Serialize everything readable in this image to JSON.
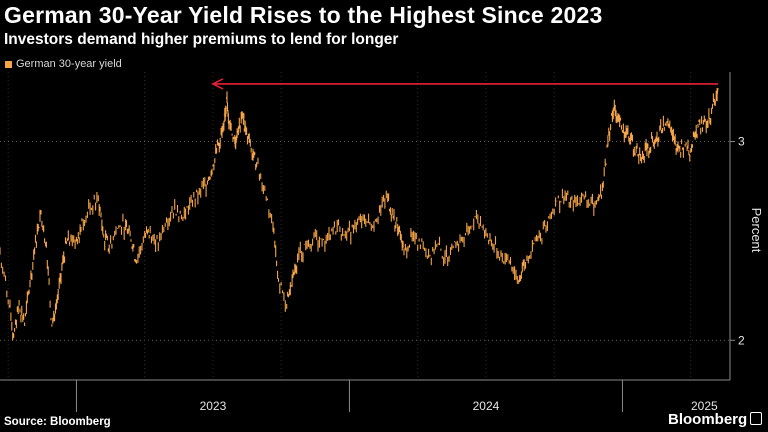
{
  "header": {
    "title": "German 30-Year Yield Rises to the Highest Since 2023",
    "subtitle": "Investors demand higher premiums to lend for longer"
  },
  "legend": {
    "label": "German 30-year yield",
    "color": "#f5a447"
  },
  "footer": {
    "source": "Source: Bloomberg",
    "brand": "Bloomberg"
  },
  "colors": {
    "line": "#f5a447",
    "arrow": "#e8203a",
    "grid": "#5a5a5a",
    "axis": "#8a8a8a"
  },
  "chart_data": {
    "type": "line",
    "title": "German 30-Year Yield Rises to the Highest Since 2023",
    "subtitle": "Investors demand higher premiums to lend for longer",
    "xlabel": "",
    "ylabel": "Percent",
    "ylim": [
      1.8,
      3.35
    ],
    "yticks": [
      2,
      3
    ],
    "xlim": [
      2022.72,
      2025.35
    ],
    "x_tick_labels": [
      {
        "label": "2023",
        "x": 2023.5
      },
      {
        "label": "2024",
        "x": 2024.5
      },
      {
        "label": "2025",
        "x": 2025.3
      }
    ],
    "year_boundaries": [
      2023.0,
      2024.0,
      2025.0
    ],
    "legend_position": "top-left",
    "grid": true,
    "annotation": {
      "type": "arrow",
      "from_x": 2025.35,
      "to_x": 2023.5,
      "y": 3.29,
      "text": ""
    },
    "series": [
      {
        "name": "German 30-year yield",
        "points": [
          [
            2022.72,
            2.45
          ],
          [
            2022.75,
            2.2
          ],
          [
            2022.77,
            2.02
          ],
          [
            2022.79,
            2.18
          ],
          [
            2022.81,
            2.08
          ],
          [
            2022.83,
            2.29
          ],
          [
            2022.85,
            2.5
          ],
          [
            2022.87,
            2.65
          ],
          [
            2022.89,
            2.48
          ],
          [
            2022.91,
            2.07
          ],
          [
            2022.93,
            2.2
          ],
          [
            2022.95,
            2.4
          ],
          [
            2022.97,
            2.52
          ],
          [
            2023.0,
            2.5
          ],
          [
            2023.02,
            2.6
          ],
          [
            2023.05,
            2.66
          ],
          [
            2023.08,
            2.72
          ],
          [
            2023.1,
            2.52
          ],
          [
            2023.12,
            2.47
          ],
          [
            2023.15,
            2.56
          ],
          [
            2023.18,
            2.58
          ],
          [
            2023.2,
            2.5
          ],
          [
            2023.22,
            2.4
          ],
          [
            2023.25,
            2.52
          ],
          [
            2023.27,
            2.55
          ],
          [
            2023.3,
            2.48
          ],
          [
            2023.33,
            2.6
          ],
          [
            2023.36,
            2.68
          ],
          [
            2023.39,
            2.62
          ],
          [
            2023.42,
            2.7
          ],
          [
            2023.45,
            2.74
          ],
          [
            2023.48,
            2.8
          ],
          [
            2023.5,
            2.88
          ],
          [
            2023.52,
            2.98
          ],
          [
            2023.54,
            3.08
          ],
          [
            2023.55,
            3.22
          ],
          [
            2023.56,
            3.1
          ],
          [
            2023.58,
            3.0
          ],
          [
            2023.59,
            3.05
          ],
          [
            2023.61,
            3.12
          ],
          [
            2023.62,
            3.05
          ],
          [
            2023.64,
            2.96
          ],
          [
            2023.66,
            2.88
          ],
          [
            2023.69,
            2.76
          ],
          [
            2023.72,
            2.58
          ],
          [
            2023.74,
            2.3
          ],
          [
            2023.77,
            2.18
          ],
          [
            2023.79,
            2.3
          ],
          [
            2023.81,
            2.42
          ],
          [
            2023.84,
            2.48
          ],
          [
            2023.87,
            2.52
          ],
          [
            2023.9,
            2.48
          ],
          [
            2023.93,
            2.53
          ],
          [
            2023.96,
            2.58
          ],
          [
            2023.99,
            2.52
          ],
          [
            2024.02,
            2.58
          ],
          [
            2024.05,
            2.62
          ],
          [
            2024.08,
            2.58
          ],
          [
            2024.11,
            2.66
          ],
          [
            2024.14,
            2.72
          ],
          [
            2024.16,
            2.62
          ],
          [
            2024.18,
            2.55
          ],
          [
            2024.2,
            2.45
          ],
          [
            2024.23,
            2.52
          ],
          [
            2024.26,
            2.48
          ],
          [
            2024.29,
            2.43
          ],
          [
            2024.32,
            2.48
          ],
          [
            2024.35,
            2.42
          ],
          [
            2024.38,
            2.47
          ],
          [
            2024.41,
            2.51
          ],
          [
            2024.44,
            2.56
          ],
          [
            2024.47,
            2.62
          ],
          [
            2024.5,
            2.55
          ],
          [
            2024.53,
            2.47
          ],
          [
            2024.56,
            2.42
          ],
          [
            2024.59,
            2.4
          ],
          [
            2024.62,
            2.3
          ],
          [
            2024.64,
            2.38
          ],
          [
            2024.67,
            2.48
          ],
          [
            2024.7,
            2.52
          ],
          [
            2024.73,
            2.62
          ],
          [
            2024.76,
            2.7
          ],
          [
            2024.79,
            2.72
          ],
          [
            2024.82,
            2.68
          ],
          [
            2024.85,
            2.72
          ],
          [
            2024.88,
            2.68
          ],
          [
            2024.91,
            2.7
          ],
          [
            2024.93,
            2.78
          ],
          [
            2024.95,
            3.05
          ],
          [
            2024.97,
            3.18
          ],
          [
            2024.99,
            3.1
          ],
          [
            2025.01,
            3.05
          ],
          [
            2025.03,
            3.02
          ],
          [
            2025.05,
            2.95
          ],
          [
            2025.07,
            2.9
          ],
          [
            2025.09,
            2.96
          ],
          [
            2025.11,
            3.02
          ],
          [
            2025.13,
            3.0
          ],
          [
            2025.15,
            3.1
          ],
          [
            2025.17,
            3.08
          ],
          [
            2025.19,
            3.0
          ],
          [
            2025.21,
            2.96
          ],
          [
            2025.23,
            2.98
          ],
          [
            2025.25,
            2.95
          ],
          [
            2025.27,
            3.05
          ],
          [
            2025.29,
            3.1
          ],
          [
            2025.31,
            3.08
          ],
          [
            2025.33,
            3.18
          ],
          [
            2025.35,
            3.27
          ]
        ]
      }
    ]
  }
}
